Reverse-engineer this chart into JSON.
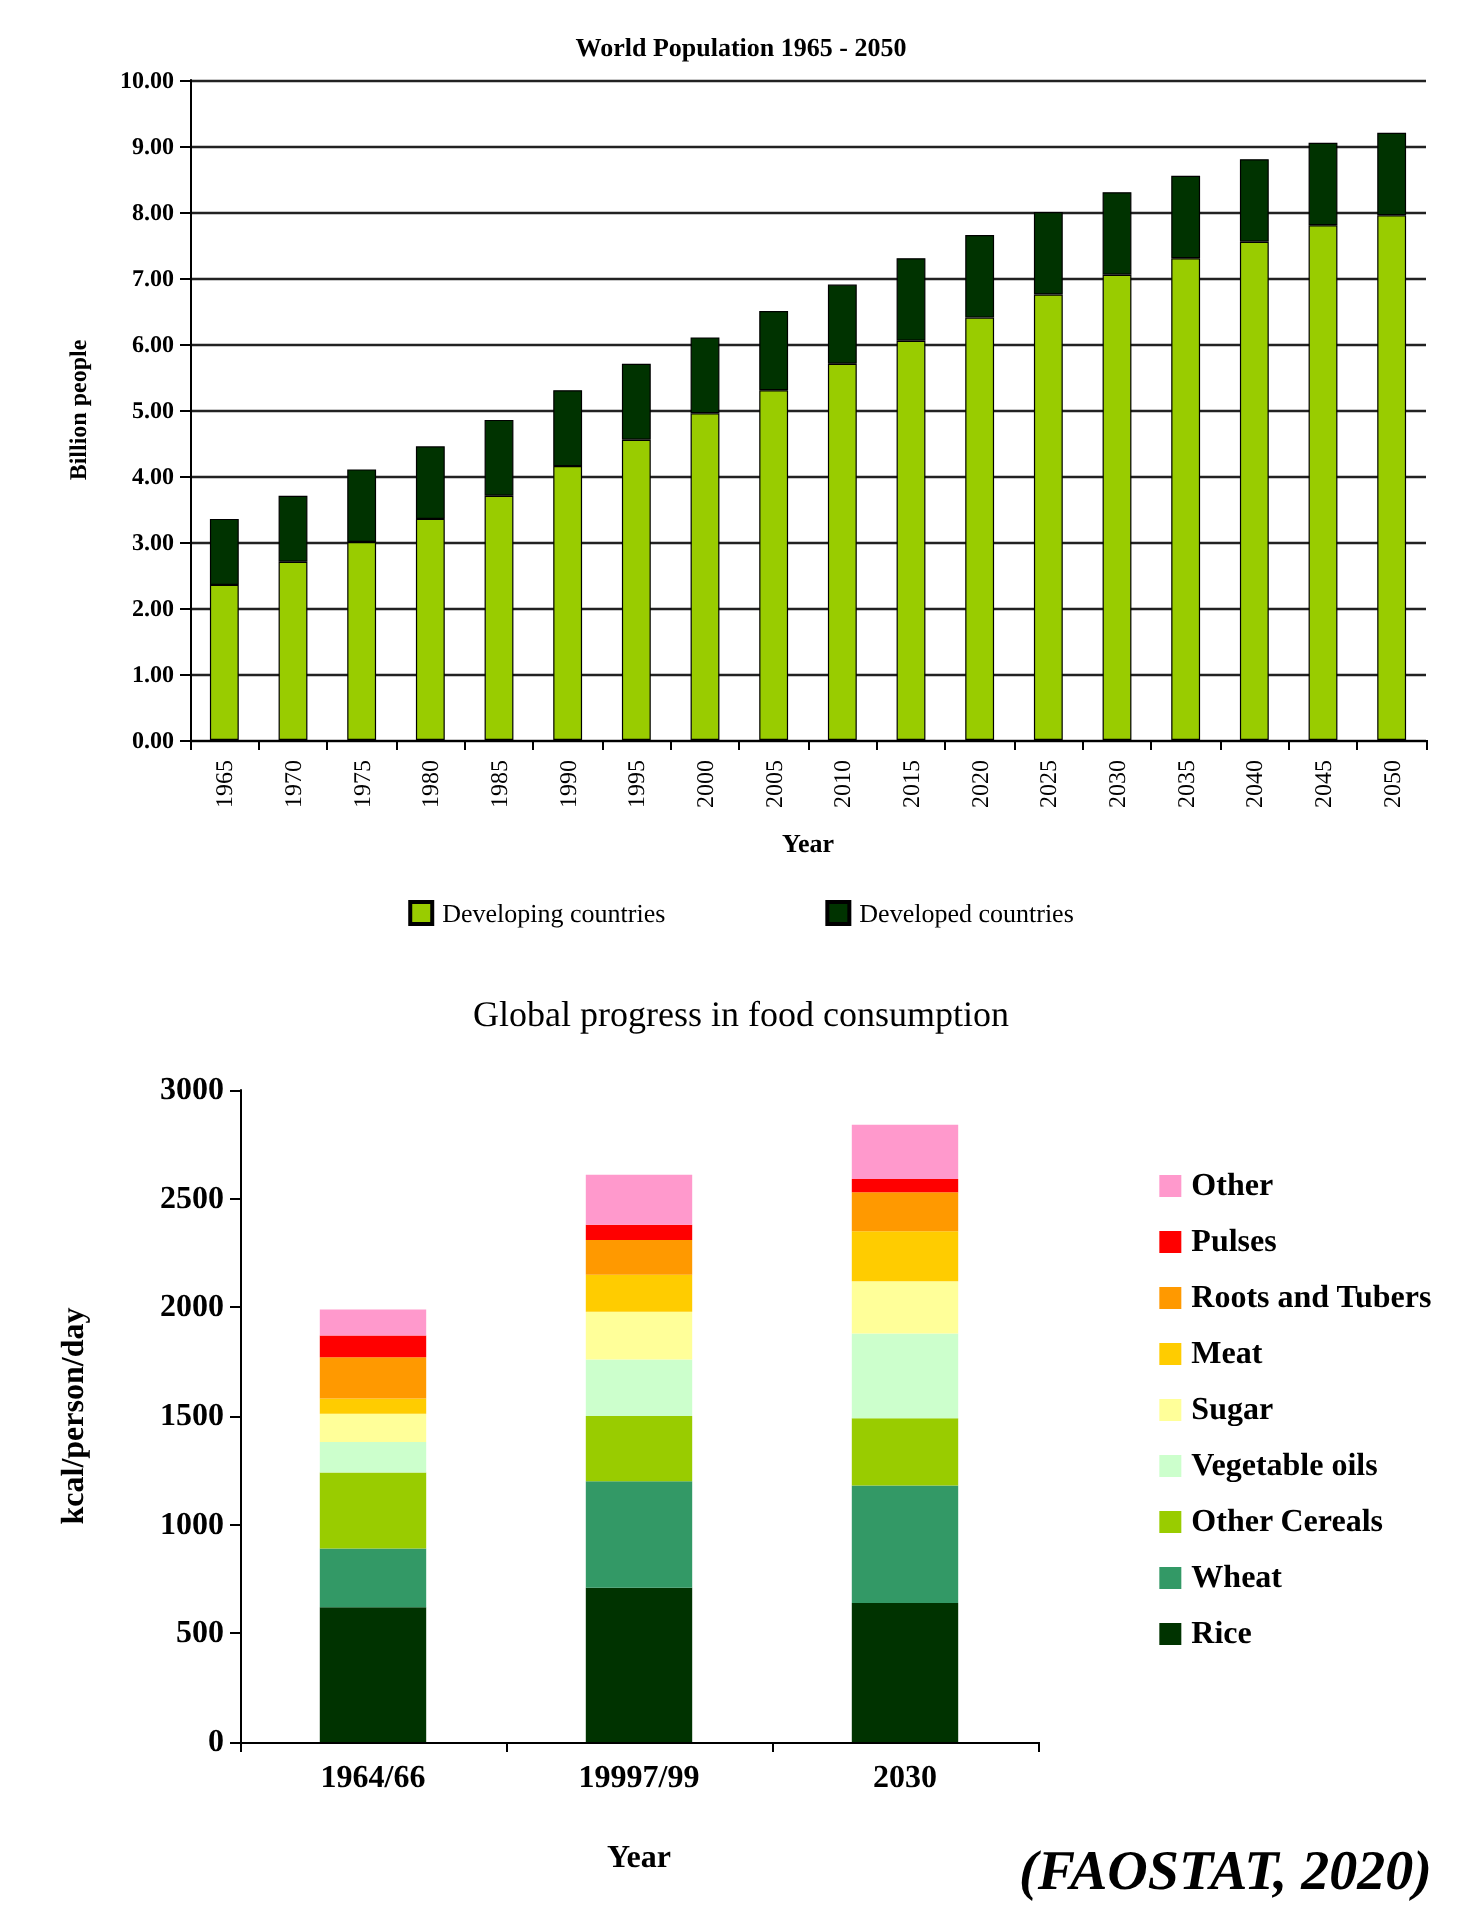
{
  "chart_data": [
    {
      "type": "bar",
      "title": "World Population 1965 - 2050",
      "xlabel": "Year",
      "ylabel": "Billion people",
      "stacked": true,
      "grid": "y",
      "legend": "bottom",
      "categories": [
        "1965",
        "1970",
        "1975",
        "1980",
        "1985",
        "1990",
        "1995",
        "2000",
        "2005",
        "2010",
        "2015",
        "2020",
        "2025",
        "2030",
        "2035",
        "2040",
        "2045",
        "2050"
      ],
      "series": [
        {
          "name": "Developing countries",
          "color": "#99cc00",
          "values": [
            2.35,
            2.7,
            3.0,
            3.35,
            3.7,
            4.15,
            4.55,
            4.95,
            5.3,
            5.7,
            6.05,
            6.4,
            6.75,
            7.05,
            7.3,
            7.55,
            7.8,
            7.95
          ]
        },
        {
          "name": "Developed countries",
          "color": "#003300",
          "values": [
            1.0,
            1.0,
            1.1,
            1.1,
            1.15,
            1.15,
            1.15,
            1.15,
            1.2,
            1.2,
            1.25,
            1.25,
            1.25,
            1.25,
            1.25,
            1.25,
            1.25,
            1.25
          ]
        }
      ],
      "ylim": [
        0,
        10
      ],
      "yticks": [
        {
          "value": 0,
          "label": "0.00"
        },
        {
          "value": 1,
          "label": "1.00"
        },
        {
          "value": 2,
          "label": "2.00"
        },
        {
          "value": 3,
          "label": "3.00"
        },
        {
          "value": 4,
          "label": "4.00"
        },
        {
          "value": 5,
          "label": "5.00"
        },
        {
          "value": 6,
          "label": "6.00"
        },
        {
          "value": 7,
          "label": "7.00"
        },
        {
          "value": 8,
          "label": "8.00"
        },
        {
          "value": 9,
          "label": "9.00"
        },
        {
          "value": 10,
          "label": "10.00"
        }
      ]
    },
    {
      "type": "bar",
      "title": "Global progress in food consumption",
      "xlabel": "Year",
      "ylabel": "kcal/person/day",
      "stacked": true,
      "grid": false,
      "legend": "right",
      "categories": [
        "1964/66",
        "19997/99",
        "2030"
      ],
      "series": [
        {
          "name": "Rice",
          "color": "#003300",
          "values": [
            620,
            710,
            640
          ]
        },
        {
          "name": "Wheat",
          "color": "#339966",
          "values": [
            270,
            490,
            540
          ]
        },
        {
          "name": "Other Cereals",
          "color": "#99cc00",
          "values": [
            350,
            300,
            310
          ]
        },
        {
          "name": "Vegetable oils",
          "color": "#ccffcc",
          "values": [
            140,
            260,
            390
          ]
        },
        {
          "name": "Sugar",
          "color": "#ffff99",
          "values": [
            130,
            220,
            240
          ]
        },
        {
          "name": "Meat",
          "color": "#ffcc00",
          "values": [
            70,
            170,
            230
          ]
        },
        {
          "name": "Roots and Tubers",
          "color": "#ff9900",
          "values": [
            190,
            160,
            180
          ]
        },
        {
          "name": "Pulses",
          "color": "#ff0000",
          "values": [
            100,
            70,
            60
          ]
        },
        {
          "name": "Other",
          "color": "#ff99cc",
          "values": [
            120,
            230,
            250
          ]
        }
      ],
      "ylim": [
        0,
        3000
      ],
      "yticks": [
        0,
        500,
        1000,
        1500,
        2000,
        2500,
        3000
      ],
      "annotations": [
        "(FAOSTAT, 2020)"
      ]
    }
  ]
}
